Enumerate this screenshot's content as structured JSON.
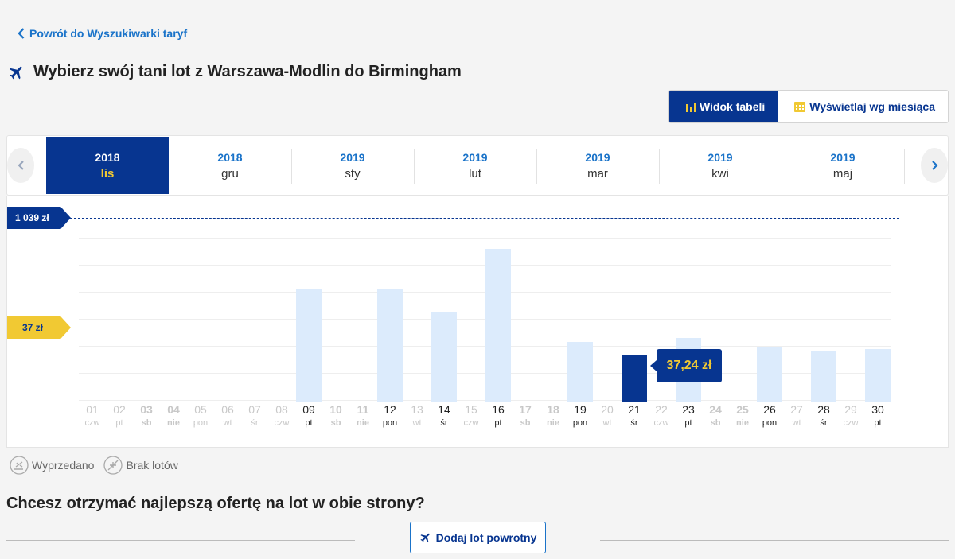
{
  "header": {
    "back_link": "Powrót do Wyszukiwarki taryf",
    "title": "Wybierz swój tani lot z Warszawa-Modlin do Birmingham"
  },
  "view_toggle": {
    "table_view": "Widok tabeli",
    "month_view": "Wyświetlaj wg miesiąca"
  },
  "months": [
    {
      "year": "2018",
      "month": "lis",
      "active": true
    },
    {
      "year": "2018",
      "month": "gru",
      "active": false
    },
    {
      "year": "2019",
      "month": "sty",
      "active": false
    },
    {
      "year": "2019",
      "month": "lut",
      "active": false
    },
    {
      "year": "2019",
      "month": "mar",
      "active": false
    },
    {
      "year": "2019",
      "month": "kwi",
      "active": false
    },
    {
      "year": "2019",
      "month": "maj",
      "active": false
    }
  ],
  "chart_data": {
    "type": "bar",
    "max_price_label": "1 039 zł",
    "min_price_label": "37 zł",
    "selected_price": "37,24 zł",
    "selected_day": "21",
    "days": [
      {
        "day": "01",
        "weekday": "czw",
        "available": false,
        "weekend": false,
        "value": null
      },
      {
        "day": "02",
        "weekday": "pt",
        "available": false,
        "weekend": false,
        "value": null
      },
      {
        "day": "03",
        "weekday": "sb",
        "available": false,
        "weekend": true,
        "value": null
      },
      {
        "day": "04",
        "weekday": "nie",
        "available": false,
        "weekend": true,
        "value": null
      },
      {
        "day": "05",
        "weekday": "pon",
        "available": false,
        "weekend": false,
        "value": null
      },
      {
        "day": "06",
        "weekday": "wt",
        "available": false,
        "weekend": false,
        "value": null
      },
      {
        "day": "07",
        "weekday": "śr",
        "available": false,
        "weekend": false,
        "value": null
      },
      {
        "day": "08",
        "weekday": "czw",
        "available": false,
        "weekend": false,
        "value": null
      },
      {
        "day": "09",
        "weekday": "pt",
        "available": true,
        "weekend": false,
        "value": 141
      },
      {
        "day": "10",
        "weekday": "sb",
        "available": false,
        "weekend": true,
        "value": null
      },
      {
        "day": "11",
        "weekday": "nie",
        "available": false,
        "weekend": true,
        "value": null
      },
      {
        "day": "12",
        "weekday": "pon",
        "available": true,
        "weekend": false,
        "value": 141
      },
      {
        "day": "13",
        "weekday": "wt",
        "available": false,
        "weekend": false,
        "value": null
      },
      {
        "day": "14",
        "weekday": "śr",
        "available": true,
        "weekend": false,
        "value": 113
      },
      {
        "day": "15",
        "weekday": "czw",
        "available": false,
        "weekend": false,
        "value": null
      },
      {
        "day": "16",
        "weekday": "pt",
        "available": true,
        "weekend": false,
        "value": 192
      },
      {
        "day": "17",
        "weekday": "sb",
        "available": false,
        "weekend": true,
        "value": null
      },
      {
        "day": "18",
        "weekday": "nie",
        "available": false,
        "weekend": true,
        "value": null
      },
      {
        "day": "19",
        "weekday": "pon",
        "available": true,
        "weekend": false,
        "value": 75
      },
      {
        "day": "20",
        "weekday": "wt",
        "available": false,
        "weekend": false,
        "value": null
      },
      {
        "day": "21",
        "weekday": "śr",
        "available": true,
        "weekend": false,
        "value": 58,
        "selected": true
      },
      {
        "day": "22",
        "weekday": "czw",
        "available": false,
        "weekend": false,
        "value": null
      },
      {
        "day": "23",
        "weekday": "pt",
        "available": true,
        "weekend": false,
        "value": 80
      },
      {
        "day": "24",
        "weekday": "sb",
        "available": false,
        "weekend": true,
        "value": null
      },
      {
        "day": "25",
        "weekday": "nie",
        "available": false,
        "weekend": true,
        "value": null
      },
      {
        "day": "26",
        "weekday": "pon",
        "available": true,
        "weekend": false,
        "value": 69
      },
      {
        "day": "27",
        "weekday": "wt",
        "available": false,
        "weekend": false,
        "value": null
      },
      {
        "day": "28",
        "weekday": "śr",
        "available": true,
        "weekend": false,
        "value": 63
      },
      {
        "day": "29",
        "weekday": "czw",
        "available": false,
        "weekend": false,
        "value": null
      },
      {
        "day": "30",
        "weekday": "pt",
        "available": true,
        "weekend": false,
        "value": 66
      }
    ]
  },
  "legend": {
    "sold_out": "Wyprzedano",
    "no_flights": "Brak lotów"
  },
  "promo": {
    "title": "Chcesz otrzymać najlepszą ofertę na lot w obie strony?",
    "button": "Dodaj lot powrotny"
  },
  "colors": {
    "brand_blue": "#073590",
    "accent_yellow": "#f1c933",
    "link_blue": "#1a73c9",
    "bar_light": "#dcebfc"
  }
}
